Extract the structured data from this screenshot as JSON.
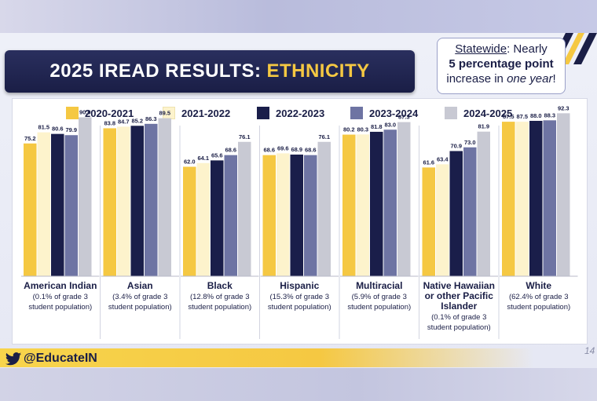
{
  "header": {
    "title_main": "2025 IREAD RESULTS:",
    "title_accent": "ETHNICITY"
  },
  "callout": {
    "line1_underlined": "Statewide",
    "line1_rest": ": Nearly",
    "line2": "5 percentage point",
    "line3_prefix": "increase in ",
    "line3_italic": "one year",
    "line3_suffix": "!"
  },
  "footer": {
    "handle": "@EducateIN",
    "page_number": "14",
    "icon": "twitter-bird-icon"
  },
  "colors": {
    "s2021": "#f5c842",
    "s2022": "#fdf3cc",
    "s2023": "#1a1e4a",
    "s2024": "#6e74a3",
    "s2025": "#c8c9d3"
  },
  "chart_data": {
    "type": "bar",
    "title": "",
    "xlabel": "",
    "ylabel": "",
    "ylim": [
      0,
      100
    ],
    "grid": false,
    "legend_position": "top",
    "categories": [
      [
        "American Indian",
        "(0.1% of grade 3",
        "student population)"
      ],
      [
        "Asian",
        "(3.4% of grade 3",
        "student population)"
      ],
      [
        "Black",
        "(12.8% of grade 3",
        "student population)"
      ],
      [
        "Hispanic",
        "(15.3% of grade 3",
        "student population)"
      ],
      [
        "Multiracial",
        "(5.9% of grade 3",
        "student population)"
      ],
      [
        "Native Hawaiian",
        "or other Pacific",
        "Islander",
        "(0.1% of grade 3",
        "student population)"
      ],
      [
        "White",
        "(62.4% of grade 3",
        "student population)"
      ]
    ],
    "series": [
      {
        "name": "2020-2021",
        "values": [
          75.2,
          83.8,
          62.0,
          68.6,
          80.2,
          61.6,
          87.5
        ]
      },
      {
        "name": "2021-2022",
        "values": [
          81.5,
          84.7,
          64.1,
          69.6,
          80.3,
          63.4,
          87.5
        ]
      },
      {
        "name": "2022-2023",
        "values": [
          80.6,
          85.2,
          65.6,
          68.9,
          81.8,
          70.9,
          88.0
        ]
      },
      {
        "name": "2023-2024",
        "values": [
          79.9,
          86.3,
          68.6,
          68.6,
          83.0,
          73.0,
          88.3
        ]
      },
      {
        "name": "2024-2025",
        "values": [
          90.0,
          89.5,
          76.1,
          76.1,
          87.3,
          81.9,
          92.3
        ]
      }
    ]
  }
}
